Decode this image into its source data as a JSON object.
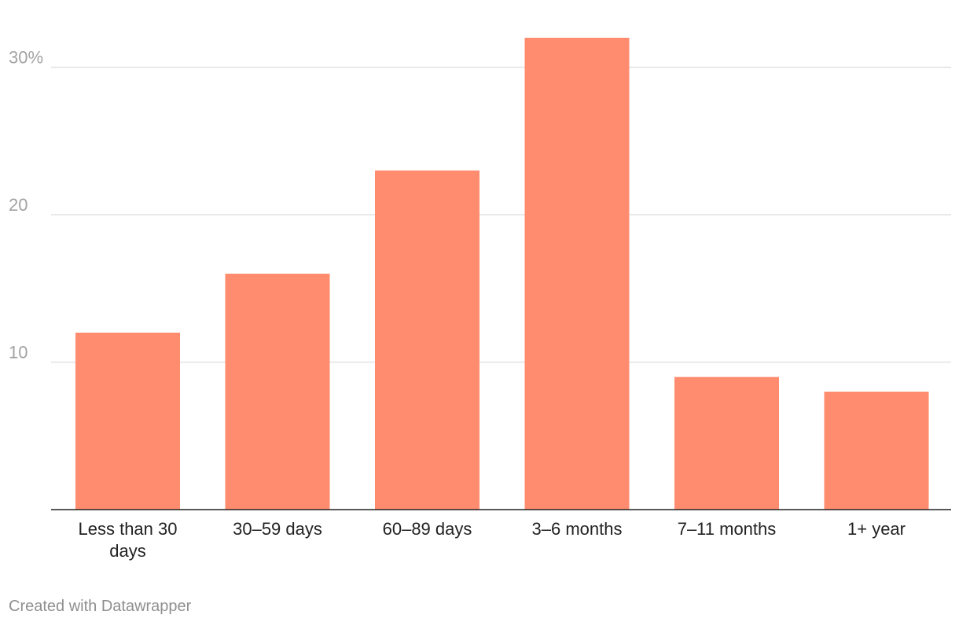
{
  "chart_data": {
    "type": "bar",
    "categories": [
      "Less than 30 days",
      "30–59 days",
      "60–89 days",
      "3–6 months",
      "7–11 months",
      "1+ year"
    ],
    "values": [
      12,
      16,
      23,
      32,
      9,
      8
    ],
    "ylim": [
      0,
      32
    ],
    "y_ticks": [
      {
        "value": 10,
        "label": "10"
      },
      {
        "value": 20,
        "label": "20"
      },
      {
        "value": 30,
        "label": "30%"
      }
    ],
    "bar_color": "#ff8c6e",
    "grid": true,
    "title": "",
    "xlabel": "",
    "ylabel": ""
  },
  "credit": "Created with Datawrapper"
}
